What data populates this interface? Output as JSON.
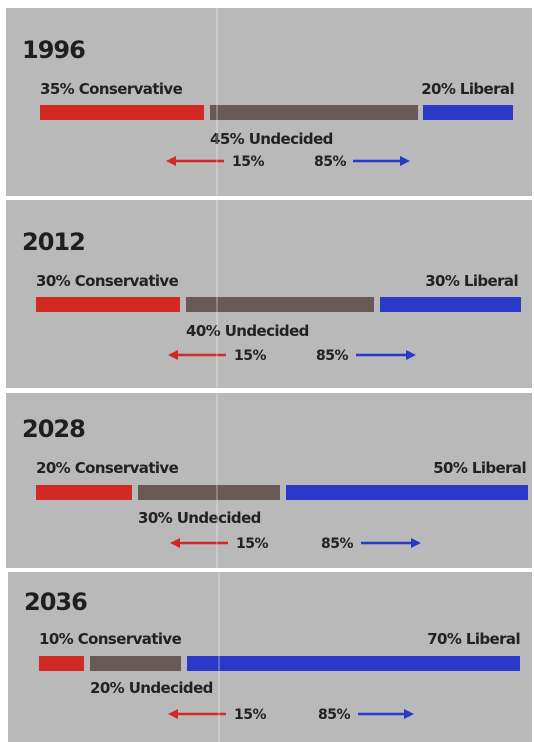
{
  "colors": {
    "conservative": "#d12a24",
    "undecided": "#6a5a57",
    "liberal": "#2b39c9",
    "arrow_left": "#d12a24",
    "arrow_right": "#2b39c9"
  },
  "chart_data": [
    {
      "type": "bar",
      "year": "1996",
      "labels": {
        "conservative": "35% Conservative",
        "undecided": "45% Undecided",
        "liberal": "20% Liberal",
        "left_pct": "15%",
        "right_pct": "85%"
      },
      "series": [
        {
          "name": "Conservative",
          "value": 35
        },
        {
          "name": "Undecided",
          "value": 45
        },
        {
          "name": "Liberal",
          "value": 20
        }
      ]
    },
    {
      "type": "bar",
      "year": "2012",
      "labels": {
        "conservative": "30% Conservative",
        "undecided": "40% Undecided",
        "liberal": "30% Liberal",
        "left_pct": "15%",
        "right_pct": "85%"
      },
      "series": [
        {
          "name": "Conservative",
          "value": 30
        },
        {
          "name": "Undecided",
          "value": 40
        },
        {
          "name": "Liberal",
          "value": 30
        }
      ]
    },
    {
      "type": "bar",
      "year": "2028",
      "labels": {
        "conservative": "20% Conservative",
        "undecided": "30% Undecided",
        "liberal": "50% Liberal",
        "left_pct": "15%",
        "right_pct": "85%"
      },
      "series": [
        {
          "name": "Conservative",
          "value": 20
        },
        {
          "name": "Undecided",
          "value": 30
        },
        {
          "name": "Liberal",
          "value": 50
        }
      ]
    },
    {
      "type": "bar",
      "year": "2036",
      "labels": {
        "conservative": "10% Conservative",
        "undecided": "20% Undecided",
        "liberal": "70% Liberal",
        "left_pct": "15%",
        "right_pct": "85%"
      },
      "series": [
        {
          "name": "Conservative",
          "value": 10
        },
        {
          "name": "Undecided",
          "value": 20
        },
        {
          "name": "Liberal",
          "value": 70
        }
      ]
    }
  ]
}
